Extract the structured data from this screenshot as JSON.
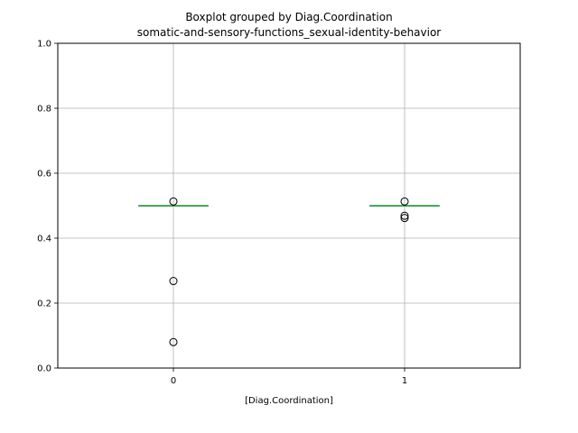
{
  "chart_data": {
    "type": "box",
    "suptitle": "Boxplot grouped by Diag.Coordination",
    "title": "somatic-and-sensory-functions_sexual-identity-behavior",
    "xlabel": "[Diag.Coordination]",
    "ylabel": "",
    "ylim": [
      0.0,
      1.0
    ],
    "yticks": [
      "0.0",
      "0.2",
      "0.4",
      "0.6",
      "0.8",
      "1.0"
    ],
    "grid": true,
    "categories": [
      "0",
      "1"
    ],
    "boxes": [
      {
        "category": "0",
        "q1": 0.5,
        "median": 0.5,
        "q3": 0.5,
        "whisker_low": 0.5,
        "whisker_high": 0.5,
        "fliers": [
          0.513,
          0.268,
          0.08
        ]
      },
      {
        "category": "1",
        "q1": 0.5,
        "median": 0.5,
        "q3": 0.5,
        "whisker_low": 0.5,
        "whisker_high": 0.5,
        "fliers": [
          0.513,
          0.469,
          0.462
        ]
      }
    ],
    "colors": {
      "box": "#1f77b4",
      "median": "#2ca02c",
      "grid": "#b0b0b0",
      "flier": "#000000"
    }
  }
}
